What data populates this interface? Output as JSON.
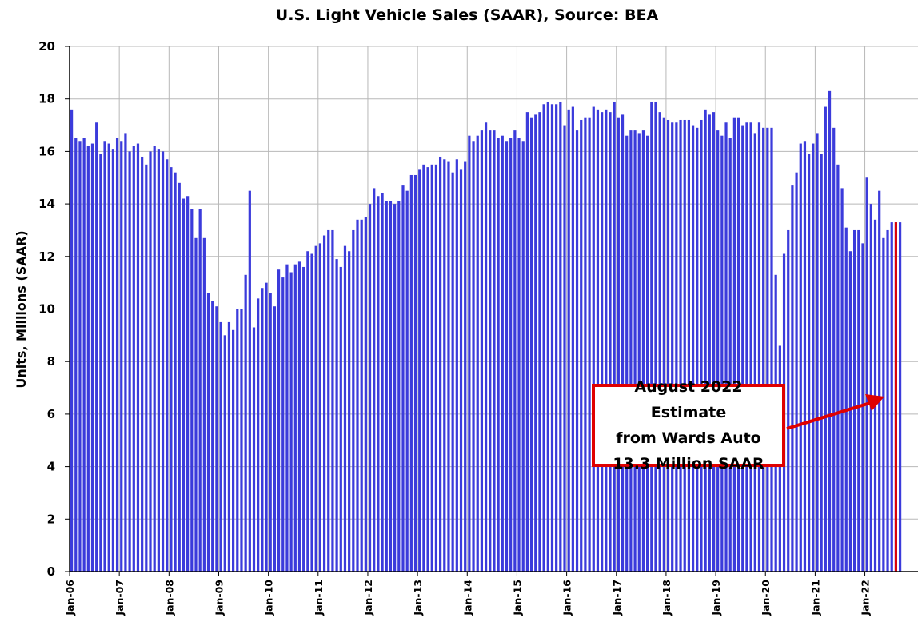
{
  "chart_data": {
    "type": "bar",
    "title": "U.S. Light Vehicle Sales (SAAR), Source: BEA",
    "xlabel": "",
    "ylabel": "Units, Millions (SAAR)",
    "ylim": [
      0,
      20
    ],
    "yticks": [
      0,
      2,
      4,
      6,
      8,
      10,
      12,
      14,
      16,
      18,
      20
    ],
    "grid": true,
    "legend": "none",
    "start": "Jan-06",
    "xticks": [
      "Jan-06",
      "Jan-07",
      "Jan-08",
      "Jan-09",
      "Jan-10",
      "Jan-11",
      "Jan-12",
      "Jan-13",
      "Jan-14",
      "Jan-15",
      "Jan-16",
      "Jan-17",
      "Jan-18",
      "Jan-19",
      "Jan-20",
      "Jan-21",
      "Jan-22"
    ],
    "bar_color": "#3b3bdb",
    "highlight_color": "#e00000",
    "values": [
      17.6,
      16.5,
      16.4,
      16.5,
      16.2,
      16.3,
      17.1,
      15.9,
      16.4,
      16.3,
      16.1,
      16.5,
      16.4,
      16.7,
      16.0,
      16.2,
      16.3,
      15.8,
      15.5,
      16.0,
      16.2,
      16.1,
      16.0,
      15.7,
      15.4,
      15.2,
      14.8,
      14.2,
      14.3,
      13.8,
      12.7,
      13.8,
      12.7,
      10.6,
      10.3,
      10.1,
      9.5,
      9.0,
      9.5,
      9.2,
      10.0,
      10.0,
      11.3,
      14.5,
      9.3,
      10.4,
      10.8,
      11.0,
      10.6,
      10.1,
      11.5,
      11.2,
      11.7,
      11.4,
      11.7,
      11.8,
      11.6,
      12.2,
      12.1,
      12.4,
      12.5,
      12.8,
      13.0,
      13.0,
      11.9,
      11.6,
      12.4,
      12.2,
      13.0,
      13.4,
      13.4,
      13.5,
      14.0,
      14.6,
      14.3,
      14.4,
      14.1,
      14.1,
      14.0,
      14.1,
      14.7,
      14.5,
      15.1,
      15.1,
      15.3,
      15.5,
      15.4,
      15.5,
      15.5,
      15.8,
      15.7,
      15.6,
      15.2,
      15.7,
      15.3,
      15.6,
      16.6,
      16.4,
      16.6,
      16.8,
      17.1,
      16.8,
      16.8,
      16.5,
      16.6,
      16.4,
      16.5,
      16.8,
      16.5,
      16.4,
      17.5,
      17.3,
      17.4,
      17.5,
      17.8,
      17.9,
      17.8,
      17.8,
      17.9,
      17.0,
      17.6,
      17.7,
      16.8,
      17.2,
      17.3,
      17.3,
      17.7,
      17.6,
      17.5,
      17.6,
      17.5,
      17.9,
      17.3,
      17.4,
      16.6,
      16.8,
      16.8,
      16.7,
      16.8,
      16.6,
      17.9,
      17.9,
      17.5,
      17.3,
      17.2,
      17.1,
      17.1,
      17.2,
      17.2,
      17.2,
      17.0,
      16.9,
      17.2,
      17.6,
      17.4,
      17.5,
      16.8,
      16.6,
      17.1,
      16.5,
      17.3,
      17.3,
      17.0,
      17.1,
      17.1,
      16.7,
      17.1,
      16.9,
      16.9,
      16.9,
      11.3,
      8.6,
      12.1,
      13.0,
      14.7,
      15.2,
      16.3,
      16.4,
      15.9,
      16.3,
      16.7,
      15.9,
      17.7,
      18.3,
      16.9,
      15.5,
      14.6,
      13.1,
      12.2,
      13.0,
      13.0,
      12.5,
      15.0,
      14.0,
      13.4,
      14.5,
      12.7,
      13.0,
      13.3,
      13.3,
      13.3
    ],
    "highlight_index": 199,
    "annotation": {
      "lines": [
        "August 2022 Estimate",
        "from Wards Auto",
        "13.3 Million SAAR"
      ],
      "points_to": 13.3
    }
  }
}
